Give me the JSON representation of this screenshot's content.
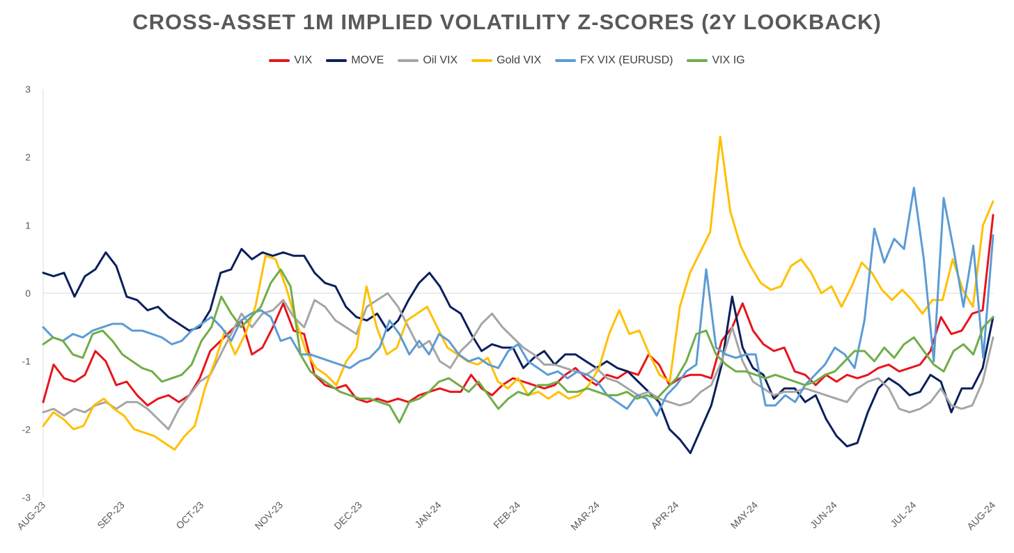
{
  "chart_data": {
    "type": "line",
    "title": "CROSS-ASSET 1M IMPLIED VOLATILITY Z-SCORES (2Y LOOKBACK)",
    "xlabel": "",
    "ylabel": "",
    "ylim": [
      -3,
      3
    ],
    "yticks": [
      "3",
      "2",
      "1",
      "0",
      "-1",
      "-2",
      "-3"
    ],
    "x_tick_labels": [
      "AUG-23",
      "SEP-23",
      "OCT-23",
      "NOV-23",
      "DEC-23",
      "JAN-24",
      "FEB-24",
      "MAR-24",
      "APR-24",
      "MAY-24",
      "JUN-24",
      "JUL-24",
      "AUG-24"
    ],
    "legend_position": "top",
    "grid": false,
    "series": [
      {
        "name": "VIX",
        "color": "#e8141b",
        "values": [
          -1.6,
          -1.05,
          -1.25,
          -1.3,
          -1.2,
          -0.85,
          -1.0,
          -1.35,
          -1.3,
          -1.5,
          -1.65,
          -1.55,
          -1.5,
          -1.6,
          -1.5,
          -1.25,
          -0.85,
          -0.7,
          -0.55,
          -0.4,
          -0.9,
          -0.8,
          -0.5,
          -0.15,
          -0.55,
          -0.6,
          -1.2,
          -1.35,
          -1.4,
          -1.35,
          -1.55,
          -1.6,
          -1.55,
          -1.6,
          -1.55,
          -1.6,
          -1.5,
          -1.45,
          -1.4,
          -1.45,
          -1.45,
          -1.2,
          -1.4,
          -1.5,
          -1.35,
          -1.25,
          -1.3,
          -1.35,
          -1.4,
          -1.35,
          -1.2,
          -1.1,
          -1.25,
          -1.35,
          -1.2,
          -1.25,
          -1.15,
          -1.2,
          -0.9,
          -1.05,
          -1.35,
          -1.25,
          -1.2,
          -1.2,
          -1.25,
          -0.7,
          -0.5,
          -0.15,
          -0.55,
          -0.75,
          -0.85,
          -0.8,
          -1.15,
          -1.2,
          -1.35,
          -1.2,
          -1.3,
          -1.2,
          -1.25,
          -1.2,
          -1.1,
          -1.05,
          -1.15,
          -1.1,
          -1.05,
          -0.85,
          -0.35,
          -0.6,
          -0.55,
          -0.3,
          -0.25,
          1.15
        ]
      },
      {
        "name": "MOVE",
        "color": "#0b1f5c",
        "values": [
          0.3,
          0.25,
          0.3,
          -0.05,
          0.25,
          0.35,
          0.6,
          0.4,
          -0.05,
          -0.1,
          -0.25,
          -0.2,
          -0.35,
          -0.45,
          -0.55,
          -0.5,
          -0.25,
          0.3,
          0.35,
          0.65,
          0.5,
          0.6,
          0.55,
          0.6,
          0.55,
          0.55,
          0.3,
          0.15,
          0.1,
          -0.2,
          -0.35,
          -0.4,
          -0.3,
          -0.55,
          -0.4,
          -0.1,
          0.15,
          0.3,
          0.1,
          -0.2,
          -0.3,
          -0.6,
          -0.85,
          -0.75,
          -0.8,
          -0.8,
          -1.1,
          -0.95,
          -0.85,
          -1.05,
          -0.9,
          -0.9,
          -1.0,
          -1.1,
          -1.0,
          -1.1,
          -1.15,
          -1.3,
          -1.45,
          -1.6,
          -2.0,
          -2.15,
          -2.35,
          -2.0,
          -1.65,
          -1.05,
          -0.05,
          -0.8,
          -1.1,
          -1.2,
          -1.55,
          -1.4,
          -1.4,
          -1.6,
          -1.5,
          -1.85,
          -2.1,
          -2.25,
          -2.2,
          -1.75,
          -1.4,
          -1.25,
          -1.35,
          -1.5,
          -1.45,
          -1.2,
          -1.3,
          -1.75,
          -1.4,
          -1.4,
          -1.1,
          -0.35
        ]
      },
      {
        "name": "Oil VIX",
        "color": "#a5a5a5",
        "values": [
          -1.75,
          -1.7,
          -1.8,
          -1.7,
          -1.75,
          -1.65,
          -1.6,
          -1.7,
          -1.6,
          -1.6,
          -1.7,
          -1.85,
          -2.0,
          -1.7,
          -1.5,
          -1.3,
          -1.2,
          -0.9,
          -0.6,
          -0.3,
          -0.5,
          -0.3,
          -0.25,
          -0.1,
          -0.35,
          -0.5,
          -0.1,
          -0.2,
          -0.4,
          -0.5,
          -0.6,
          -0.2,
          -0.1,
          0.0,
          -0.2,
          -0.5,
          -0.8,
          -0.7,
          -1.0,
          -1.1,
          -0.85,
          -0.7,
          -0.45,
          -0.3,
          -0.5,
          -0.65,
          -0.8,
          -0.9,
          -1.05,
          -1.05,
          -1.1,
          -1.15,
          -1.2,
          -1.1,
          -1.25,
          -1.3,
          -1.4,
          -1.5,
          -1.45,
          -1.55,
          -1.6,
          -1.65,
          -1.6,
          -1.45,
          -1.35,
          -1.0,
          -0.5,
          -1.0,
          -1.3,
          -1.4,
          -1.5,
          -1.45,
          -1.45,
          -1.4,
          -1.45,
          -1.5,
          -1.55,
          -1.6,
          -1.4,
          -1.3,
          -1.25,
          -1.4,
          -1.7,
          -1.75,
          -1.7,
          -1.6,
          -1.4,
          -1.65,
          -1.7,
          -1.65,
          -1.3,
          -0.65
        ]
      },
      {
        "name": "Gold VIX",
        "color": "#ffc000",
        "values": [
          -1.95,
          -1.75,
          -1.85,
          -2.0,
          -1.95,
          -1.65,
          -1.55,
          -1.7,
          -1.8,
          -2.0,
          -2.05,
          -2.1,
          -2.2,
          -2.3,
          -2.1,
          -1.95,
          -1.4,
          -1.0,
          -0.55,
          -0.9,
          -0.6,
          -0.2,
          0.55,
          0.5,
          0.1,
          -0.4,
          -0.85,
          -1.1,
          -1.2,
          -1.35,
          -1.0,
          -0.8,
          0.1,
          -0.5,
          -0.9,
          -0.8,
          -0.4,
          -0.3,
          -0.2,
          -0.5,
          -0.8,
          -0.9,
          -1.0,
          -1.05,
          -0.95,
          -1.3,
          -1.4,
          -1.25,
          -1.5,
          -1.45,
          -1.55,
          -1.45,
          -1.55,
          -1.5,
          -1.35,
          -1.1,
          -0.6,
          -0.25,
          -0.6,
          -0.55,
          -0.9,
          -1.2,
          -1.3,
          -0.2,
          0.3,
          0.6,
          0.9,
          2.3,
          1.2,
          0.7,
          0.4,
          0.15,
          0.05,
          0.1,
          0.4,
          0.5,
          0.3,
          0.0,
          0.1,
          -0.2,
          0.1,
          0.45,
          0.3,
          0.05,
          -0.1,
          0.05,
          -0.1,
          -0.3,
          -0.1,
          -0.1,
          0.5,
          0.05,
          -0.2,
          1.0,
          1.35
        ]
      },
      {
        "name": "FX VIX (EURUSD)",
        "color": "#5b9bd5",
        "values": [
          -0.5,
          -0.65,
          -0.7,
          -0.6,
          -0.65,
          -0.55,
          -0.5,
          -0.45,
          -0.45,
          -0.55,
          -0.55,
          -0.6,
          -0.65,
          -0.75,
          -0.7,
          -0.55,
          -0.45,
          -0.35,
          -0.5,
          -0.7,
          -0.4,
          -0.3,
          -0.25,
          -0.35,
          -0.7,
          -0.65,
          -0.9,
          -0.9,
          -0.95,
          -1.0,
          -1.05,
          -1.1,
          -1.0,
          -0.95,
          -0.8,
          -0.4,
          -0.6,
          -0.9,
          -0.7,
          -0.9,
          -0.6,
          -0.7,
          -0.9,
          -1.0,
          -0.95,
          -1.05,
          -1.1,
          -0.85,
          -0.75,
          -1.0,
          -1.1,
          -1.2,
          -1.15,
          -1.25,
          -1.15,
          -1.2,
          -1.3,
          -1.5,
          -1.6,
          -1.7,
          -1.5,
          -1.55,
          -1.8,
          -1.5,
          -1.35,
          -1.15,
          -1.05,
          0.35,
          -0.8,
          -0.9,
          -0.95,
          -0.9,
          -0.9,
          -1.65,
          -1.65,
          -1.5,
          -1.6,
          -1.35,
          -1.2,
          -1.05,
          -0.8,
          -0.9,
          -1.1,
          -0.4,
          0.95,
          0.45,
          0.8,
          0.65,
          1.55,
          0.5,
          -1.0,
          1.4,
          0.65,
          -0.2,
          0.7,
          -0.95,
          0.85
        ]
      },
      {
        "name": "VIX IG",
        "color": "#70ad47",
        "values": [
          -0.75,
          -0.65,
          -0.7,
          -0.9,
          -0.95,
          -0.6,
          -0.55,
          -0.7,
          -0.9,
          -1.0,
          -1.1,
          -1.15,
          -1.3,
          -1.25,
          -1.2,
          -1.05,
          -0.7,
          -0.5,
          -0.05,
          -0.3,
          -0.5,
          -0.35,
          -0.2,
          0.15,
          0.35,
          0.1,
          -0.9,
          -1.15,
          -1.25,
          -1.35,
          -1.45,
          -1.5,
          -1.55,
          -1.55,
          -1.6,
          -1.65,
          -1.9,
          -1.6,
          -1.55,
          -1.45,
          -1.3,
          -1.25,
          -1.35,
          -1.45,
          -1.3,
          -1.5,
          -1.7,
          -1.55,
          -1.45,
          -1.5,
          -1.35,
          -1.35,
          -1.3,
          -1.45,
          -1.45,
          -1.4,
          -1.45,
          -1.5,
          -1.5,
          -1.45,
          -1.55,
          -1.5,
          -1.55,
          -1.4,
          -1.25,
          -1.0,
          -0.6,
          -0.55,
          -0.9,
          -1.05,
          -1.15,
          -1.15,
          -1.2,
          -1.25,
          -1.2,
          -1.25,
          -1.3,
          -1.35,
          -1.3,
          -1.2,
          -1.15,
          -1.0,
          -0.85,
          -0.85,
          -1.0,
          -0.8,
          -0.95,
          -0.75,
          -0.65,
          -0.85,
          -1.05,
          -1.15,
          -0.85,
          -0.75,
          -0.9,
          -0.5,
          -0.35
        ]
      }
    ]
  }
}
